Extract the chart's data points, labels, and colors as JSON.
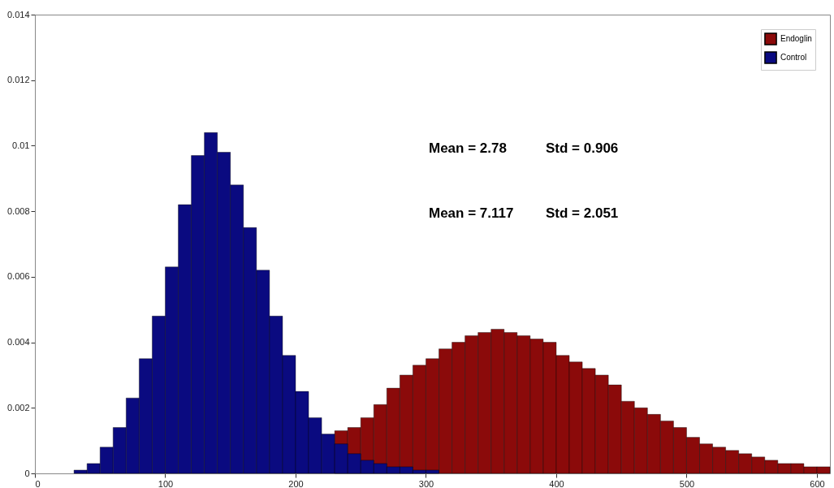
{
  "chart_data": {
    "type": "histogram",
    "bins": [
      30,
      40,
      50,
      60,
      70,
      80,
      90,
      100,
      110,
      120,
      130,
      140,
      150,
      160,
      170,
      180,
      190,
      200,
      210,
      220,
      230,
      240,
      250,
      260,
      270,
      280,
      290,
      300,
      310,
      320,
      330,
      340,
      350,
      360,
      370,
      380,
      390,
      400,
      410,
      420,
      430,
      440,
      450,
      460,
      470,
      480,
      490,
      500,
      510,
      520,
      530,
      540,
      550,
      560,
      570,
      580,
      590,
      600,
      610
    ],
    "series": [
      {
        "name": "Endoglin",
        "color": "#8b0a0a",
        "values": [
          null,
          null,
          null,
          null,
          null,
          null,
          null,
          null,
          null,
          null,
          null,
          null,
          null,
          null,
          null,
          null,
          null,
          null,
          null,
          null,
          0.0013,
          0.0014,
          0.0017,
          0.0021,
          0.0026,
          0.003,
          0.0033,
          0.0035,
          0.0038,
          0.004,
          0.0042,
          0.0043,
          0.0044,
          0.0043,
          0.0042,
          0.0041,
          0.004,
          0.0036,
          0.0034,
          0.0032,
          0.003,
          0.0027,
          0.0022,
          0.002,
          0.0018,
          0.0016,
          0.0014,
          0.0011,
          0.0009,
          0.0008,
          0.0007,
          0.0006,
          0.0005,
          0.0004,
          0.0003,
          0.0003,
          0.0002,
          0.0002
        ]
      },
      {
        "name": "Control",
        "color": "#0a0a80",
        "values": [
          0.0001,
          0.0003,
          0.0008,
          0.0014,
          0.0023,
          0.0035,
          0.0048,
          0.0063,
          0.0082,
          0.0097,
          0.0104,
          0.0098,
          0.0088,
          0.0075,
          0.0062,
          0.0048,
          0.0036,
          0.0025,
          0.0017,
          0.0012,
          0.0009,
          0.0006,
          0.0004,
          0.0003,
          0.0002,
          0.0002,
          0.0001,
          0.0001,
          null,
          null,
          null,
          null,
          null,
          null,
          null,
          null,
          null,
          null,
          null,
          null,
          null,
          null,
          null,
          null,
          null,
          null,
          null,
          null,
          null,
          null,
          null,
          null,
          null,
          null,
          null,
          null,
          null,
          null
        ]
      }
    ],
    "xlim": [
      0,
      610
    ],
    "xticks": [
      0,
      100,
      200,
      300,
      400,
      500,
      600
    ],
    "ylim": [
      0,
      0.014
    ],
    "yticks": [
      0,
      0.002,
      0.004,
      0.006,
      0.008,
      0.01,
      0.012,
      0.014
    ],
    "legend": "top right",
    "grid": false,
    "annotations": [
      "Mean = 2.78",
      "Std = 0.906",
      "Mean = 7.117",
      "Std = 2.051"
    ]
  }
}
